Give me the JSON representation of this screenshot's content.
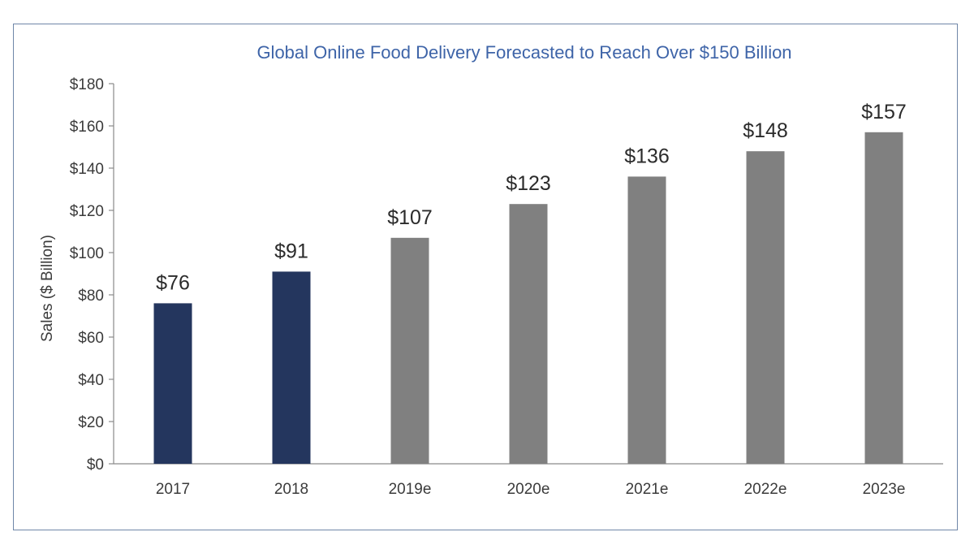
{
  "chart_data": {
    "type": "bar",
    "title": "Global Online Food Delivery Forecasted to Reach Over $150 Billion",
    "xlabel": "",
    "ylabel": "Sales ($ Billion)",
    "categories": [
      "2017",
      "2018",
      "2019e",
      "2020e",
      "2021e",
      "2022e",
      "2023e"
    ],
    "values": [
      76,
      91,
      107,
      123,
      136,
      148,
      157
    ],
    "data_labels": [
      "$76",
      "$91",
      "$107",
      "$123",
      "$136",
      "$148",
      "$157"
    ],
    "bar_colors": [
      "#24365e",
      "#24365e",
      "#808080",
      "#808080",
      "#808080",
      "#808080",
      "#808080"
    ],
    "ylim": [
      0,
      180
    ],
    "yticks": [
      0,
      20,
      40,
      60,
      80,
      100,
      120,
      140,
      160,
      180
    ],
    "ytick_labels": [
      "$0",
      "$20",
      "$40",
      "$60",
      "$80",
      "$100",
      "$120",
      "$140",
      "$160",
      "$180"
    ],
    "grid": false,
    "legend": "none",
    "colors": {
      "title": "#3e64a8",
      "actual": "#24365e",
      "estimate": "#808080",
      "border": "#6f86a8"
    }
  }
}
